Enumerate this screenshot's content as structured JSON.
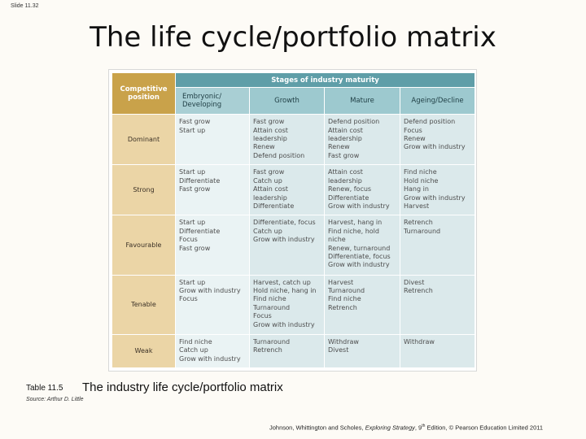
{
  "slide_number": "Slide 11.32",
  "title": "The life cycle/portfolio matrix",
  "table": {
    "corner": [
      "Competitive",
      "position"
    ],
    "stages_header": "Stages of industry maturity",
    "columns": [
      [
        "Embryonic/",
        "Developing"
      ],
      [
        "Growth"
      ],
      [
        "Mature"
      ],
      [
        "Ageing/Decline"
      ]
    ],
    "rows": [
      {
        "label": "Dominant",
        "cells": [
          [
            "Fast grow",
            "Start up"
          ],
          [
            "Fast grow",
            "Attain cost",
            "leadership",
            "Renew",
            "Defend position"
          ],
          [
            "Defend position",
            "Attain cost",
            "leadership",
            "Renew",
            "Fast grow"
          ],
          [
            "Defend position",
            "Focus",
            "Renew",
            "Grow with industry"
          ]
        ]
      },
      {
        "label": "Strong",
        "cells": [
          [
            "Start up",
            "Differentiate",
            "Fast grow"
          ],
          [
            "Fast grow",
            "Catch up",
            "Attain cost",
            "leadership",
            "Differentiate"
          ],
          [
            "Attain cost",
            "leadership",
            "Renew, focus",
            "Differentiate",
            "Grow with industry"
          ],
          [
            "Find niche",
            "Hold niche",
            "Hang in",
            "Grow with industry",
            "Harvest"
          ]
        ]
      },
      {
        "label": "Favourable",
        "cells": [
          [
            "Start up",
            "Differentiate",
            "Focus",
            "Fast grow"
          ],
          [
            "Differentiate, focus",
            "Catch up",
            "Grow with industry"
          ],
          [
            "Harvest, hang in",
            "Find niche, hold",
            "niche",
            "Renew, turnaround",
            "Differentiate, focus",
            "Grow with industry"
          ],
          [
            "Retrench",
            "Turnaround"
          ]
        ]
      },
      {
        "label": "Tenable",
        "cells": [
          [
            "Start up",
            "Grow with industry",
            "Focus"
          ],
          [
            "Harvest, catch up",
            "Hold niche, hang in",
            "Find niche",
            "Turnaround",
            "Focus",
            "Grow with industry"
          ],
          [
            "Harvest",
            "Turnaround",
            "Find niche",
            "Retrench"
          ],
          [
            "Divest",
            "Retrench"
          ]
        ]
      },
      {
        "label": "Weak",
        "cells": [
          [
            "Find niche",
            "Catch up",
            "Grow with industry"
          ],
          [
            "Turnaround",
            "Retrench"
          ],
          [
            "Withdraw",
            "Divest"
          ],
          [
            "Withdraw"
          ]
        ]
      }
    ]
  },
  "caption": {
    "label": "Table 11.5",
    "text": "The industry life cycle/portfolio matrix",
    "source": "Source: Arthur D. Little"
  },
  "footer": {
    "authors": "Johnson, Whittington and Scholes,",
    "book": "Exploring Strategy",
    "edition_num": ", 9",
    "edition_sup": "th",
    "rest": " Edition, © Pearson Education Limited 2011"
  },
  "colors": {
    "corner": "#c9a24a",
    "header": "#5f9ea8",
    "column_head": "#9dc9cf",
    "row_head": "#ebd5a6",
    "cell": "#dbe9eb"
  }
}
